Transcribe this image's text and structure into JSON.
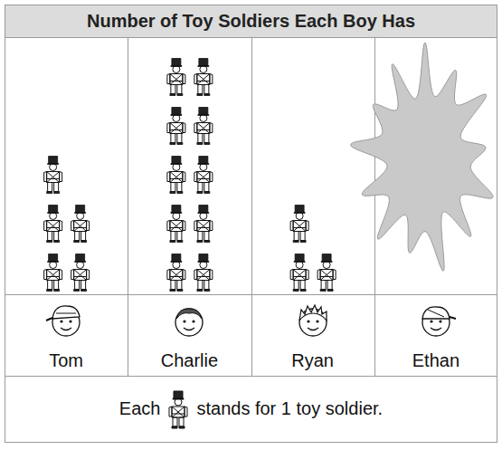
{
  "chart_data": {
    "type": "pictograph",
    "title": "Number of Toy Soldiers Each Boy Has",
    "categories": [
      "Tom",
      "Charlie",
      "Ryan",
      "Ethan"
    ],
    "values": [
      5,
      10,
      3,
      null
    ],
    "key": {
      "text_before": "Each",
      "text_after": "stands for 1 toy soldier."
    }
  }
}
